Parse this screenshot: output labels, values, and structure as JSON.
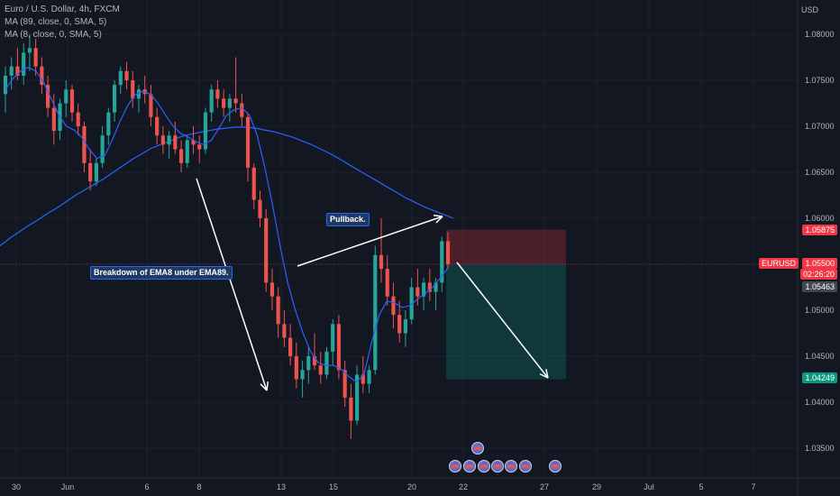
{
  "header": {
    "symbol_line": "Euro / U.S. Dollar, 4h, FXCM",
    "ma1_line": "MA (89, close, 0, SMA, 5)",
    "ma2_line": "MA (8, close, 0, SMA, 5)"
  },
  "currency_label": "USD",
  "annotations": {
    "pullback": "Pullback.",
    "breakdown": "Breakdown of EMA8 under EMA89."
  },
  "price_badges": {
    "entry_upper": "1.05875",
    "symbol": "EURUSD",
    "current_price": "1.05500",
    "countdown": "02:26:20",
    "ma_value": "1.05463",
    "target": "1.04249"
  },
  "colors": {
    "background": "#131722",
    "up_candle": "#26a69a",
    "down_candle": "#ef5350",
    "ma89": "#2962ff",
    "ma8": "#2962ff",
    "stop_zone": "#f23645",
    "profit_zone": "#089981",
    "badge_red": "#f23645",
    "badge_gray": "#434651",
    "badge_green": "#089981"
  },
  "chart_data": {
    "type": "candlestick",
    "title": "Euro / U.S. Dollar, 4h, FXCM",
    "y_axis": {
      "ticks": [
        "1.08000",
        "1.07500",
        "1.07000",
        "1.06500",
        "1.06000",
        "1.05500",
        "1.05000",
        "1.04500",
        "1.04000",
        "1.03500"
      ],
      "range": [
        1.0335,
        1.0825
      ]
    },
    "x_axis": {
      "ticks": [
        "30",
        "Jun",
        "6",
        "8",
        "13",
        "15",
        "20",
        "22",
        "27",
        "29",
        "Jul",
        "5",
        "7"
      ]
    },
    "candles": [
      [
        1.0735,
        1.0765,
        1.0715,
        1.0755
      ],
      [
        1.0755,
        1.0775,
        1.074,
        1.0765
      ],
      [
        1.0765,
        1.0785,
        1.075,
        1.0755
      ],
      [
        1.0755,
        1.079,
        1.0745,
        1.078
      ],
      [
        1.078,
        1.08,
        1.076,
        1.0785
      ],
      [
        1.0785,
        1.0795,
        1.0755,
        1.0765
      ],
      [
        1.0765,
        1.0775,
        1.0735,
        1.0745
      ],
      [
        1.0745,
        1.0755,
        1.071,
        1.072
      ],
      [
        1.072,
        1.0735,
        1.068,
        1.0695
      ],
      [
        1.0695,
        1.073,
        1.0685,
        1.0725
      ],
      [
        1.0725,
        1.075,
        1.071,
        1.074
      ],
      [
        1.074,
        1.0745,
        1.0705,
        1.0715
      ],
      [
        1.0715,
        1.0725,
        1.069,
        1.07
      ],
      [
        1.07,
        1.0705,
        1.065,
        1.066
      ],
      [
        1.066,
        1.0675,
        1.063,
        1.064
      ],
      [
        1.064,
        1.0665,
        1.0635,
        1.066
      ],
      [
        1.066,
        1.07,
        1.0655,
        1.069
      ],
      [
        1.069,
        1.072,
        1.068,
        1.0715
      ],
      [
        1.0715,
        1.075,
        1.0705,
        1.0745
      ],
      [
        1.0745,
        1.0765,
        1.0735,
        1.076
      ],
      [
        1.076,
        1.077,
        1.074,
        1.075
      ],
      [
        1.075,
        1.076,
        1.072,
        1.073
      ],
      [
        1.073,
        1.0745,
        1.0715,
        1.074
      ],
      [
        1.074,
        1.0755,
        1.0725,
        1.0735
      ],
      [
        1.0735,
        1.0745,
        1.07,
        1.071
      ],
      [
        1.071,
        1.072,
        1.068,
        1.069
      ],
      [
        1.069,
        1.07,
        1.067,
        1.068
      ],
      [
        1.068,
        1.0695,
        1.0665,
        1.069
      ],
      [
        1.069,
        1.0705,
        1.067,
        1.0675
      ],
      [
        1.0675,
        1.0685,
        1.065,
        1.066
      ],
      [
        1.066,
        1.069,
        1.0655,
        1.0685
      ],
      [
        1.0685,
        1.07,
        1.067,
        1.068
      ],
      [
        1.068,
        1.069,
        1.066,
        1.0675
      ],
      [
        1.0675,
        1.072,
        1.067,
        1.0715
      ],
      [
        1.0715,
        1.0745,
        1.0705,
        1.074
      ],
      [
        1.074,
        1.075,
        1.072,
        1.073
      ],
      [
        1.073,
        1.074,
        1.071,
        1.072
      ],
      [
        1.072,
        1.0735,
        1.0705,
        1.073
      ],
      [
        1.073,
        1.0775,
        1.0715,
        1.0725
      ],
      [
        1.0725,
        1.0735,
        1.07,
        1.071
      ],
      [
        1.071,
        1.0715,
        1.064,
        1.0655
      ],
      [
        1.0655,
        1.066,
        1.061,
        1.062
      ],
      [
        1.062,
        1.063,
        1.059,
        1.06
      ],
      [
        1.06,
        1.061,
        1.052,
        1.053
      ],
      [
        1.053,
        1.0545,
        1.05,
        1.0515
      ],
      [
        1.0515,
        1.0525,
        1.047,
        1.0485
      ],
      [
        1.0485,
        1.05,
        1.046,
        1.047
      ],
      [
        1.047,
        1.0485,
        1.044,
        1.045
      ],
      [
        1.045,
        1.0465,
        1.0415,
        1.0425
      ],
      [
        1.0425,
        1.0445,
        1.0405,
        1.0435
      ],
      [
        1.0435,
        1.046,
        1.042,
        1.045
      ],
      [
        1.045,
        1.0475,
        1.0435,
        1.044
      ],
      [
        1.044,
        1.0455,
        1.042,
        1.043
      ],
      [
        1.043,
        1.046,
        1.0425,
        1.0455
      ],
      [
        1.0455,
        1.049,
        1.044,
        1.0485
      ],
      [
        1.0485,
        1.0495,
        1.0425,
        1.0435
      ],
      [
        1.0435,
        1.0445,
        1.0395,
        1.0405
      ],
      [
        1.0405,
        1.042,
        1.036,
        1.038
      ],
      [
        1.038,
        1.044,
        1.0375,
        1.043
      ],
      [
        1.043,
        1.045,
        1.041,
        1.042
      ],
      [
        1.042,
        1.044,
        1.041,
        1.0435
      ],
      [
        1.0435,
        1.057,
        1.043,
        1.056
      ],
      [
        1.056,
        1.06,
        1.053,
        1.0545
      ],
      [
        1.0545,
        1.056,
        1.0505,
        1.0515
      ],
      [
        1.0515,
        1.053,
        1.048,
        1.0495
      ],
      [
        1.0495,
        1.051,
        1.0465,
        1.0475
      ],
      [
        1.0475,
        1.05,
        1.046,
        1.049
      ],
      [
        1.049,
        1.0535,
        1.0485,
        1.0525
      ],
      [
        1.0525,
        1.0545,
        1.0505,
        1.0515
      ],
      [
        1.0515,
        1.0535,
        1.05,
        1.053
      ],
      [
        1.053,
        1.0545,
        1.051,
        1.052
      ],
      [
        1.052,
        1.0535,
        1.05,
        1.053
      ],
      [
        1.053,
        1.058,
        1.052,
        1.0575
      ],
      [
        1.0575,
        1.0585,
        1.0545,
        1.055
      ]
    ],
    "series": [
      {
        "name": "MA (89, close, 0, SMA, 5)",
        "values": [
          1.057,
          1.0578,
          1.0585,
          1.0592,
          1.0598,
          1.0605,
          1.0611,
          1.0618,
          1.0625,
          1.0631,
          1.0637,
          1.0643,
          1.065,
          1.0657,
          1.0664,
          1.067,
          1.0676,
          1.068,
          1.0684,
          1.0688,
          1.0691,
          1.0693,
          1.0695,
          1.0697,
          1.0698,
          1.0699,
          1.0699,
          1.0698,
          1.0696,
          1.0694,
          1.0691,
          1.0688,
          1.0684,
          1.068,
          1.0675,
          1.067,
          1.0664,
          1.0658,
          1.0652,
          1.0646,
          1.064,
          1.0634,
          1.0628,
          1.0622,
          1.0617,
          1.0612,
          1.0608,
          1.0604,
          1.06
        ]
      },
      {
        "name": "MA (8, close, 0, SMA, 5)",
        "values": [
          1.074,
          1.0752,
          1.076,
          1.0764,
          1.076,
          1.0748,
          1.073,
          1.0712,
          1.07,
          1.0696,
          1.0688,
          1.0675,
          1.0665,
          1.0668,
          1.0685,
          1.0705,
          1.0722,
          1.0734,
          1.0738,
          1.0735,
          1.0725,
          1.0712,
          1.07,
          1.0692,
          1.0688,
          1.0683,
          1.068,
          1.0685,
          1.0698,
          1.0712,
          1.0718,
          1.072,
          1.0712,
          1.069,
          1.0655,
          1.0615,
          1.057,
          1.053,
          1.05,
          1.0475,
          1.0455,
          1.0443,
          1.044,
          1.044,
          1.0436,
          1.0428,
          1.0422,
          1.043,
          1.0465,
          1.0495,
          1.051,
          1.0508,
          1.0503,
          1.0505,
          1.0512,
          1.0518,
          1.0525,
          1.0535,
          1.0546
        ]
      }
    ]
  }
}
